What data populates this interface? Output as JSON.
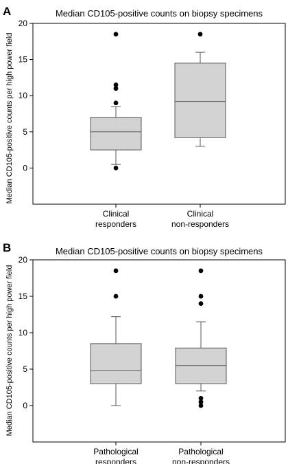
{
  "chart_data": [
    {
      "type": "boxplot",
      "panel_label": "A",
      "title": "Median CD105-positive counts on biopsy specimens",
      "ylabel": "Median CD105-positive counts per high power field",
      "ylim": [
        -5,
        20
      ],
      "yticks": [
        0,
        5,
        10,
        15,
        20
      ],
      "categories": [
        {
          "line1": "Clinical",
          "line2": "responders"
        },
        {
          "line1": "Clinical",
          "line2": "non-responders"
        }
      ],
      "boxes": [
        {
          "whisker_low": 0.5,
          "q1": 2.5,
          "median": 5.0,
          "q3": 7.0,
          "whisker_high": 8.5,
          "outliers": [
            0.0,
            9.0,
            11.0,
            11.5,
            18.5
          ]
        },
        {
          "whisker_low": 3.0,
          "q1": 4.2,
          "median": 9.2,
          "q3": 14.5,
          "whisker_high": 16.0,
          "outliers": [
            18.5
          ]
        }
      ]
    },
    {
      "type": "boxplot",
      "panel_label": "B",
      "title": "Median CD105-positive counts on biopsy specimens",
      "ylabel": "Median CD105-positive counts per high power field",
      "ylim": [
        -5,
        20
      ],
      "yticks": [
        0,
        5,
        10,
        15,
        20
      ],
      "categories": [
        {
          "line1": "Pathological",
          "line2": "responders"
        },
        {
          "line1": "Pathological",
          "line2": "non-responders"
        }
      ],
      "boxes": [
        {
          "whisker_low": 0.0,
          "q1": 3.0,
          "median": 4.8,
          "q3": 8.5,
          "whisker_high": 12.2,
          "outliers": [
            15.0,
            18.5
          ]
        },
        {
          "whisker_low": 2.0,
          "q1": 3.0,
          "median": 5.5,
          "q3": 7.9,
          "whisker_high": 11.5,
          "outliers": [
            0.0,
            0.5,
            1.0,
            14.0,
            15.0,
            18.5
          ]
        }
      ]
    }
  ],
  "style": {
    "box_fill": "#d3d3d3",
    "stroke": "#555555",
    "outlier_color": "#000000"
  }
}
